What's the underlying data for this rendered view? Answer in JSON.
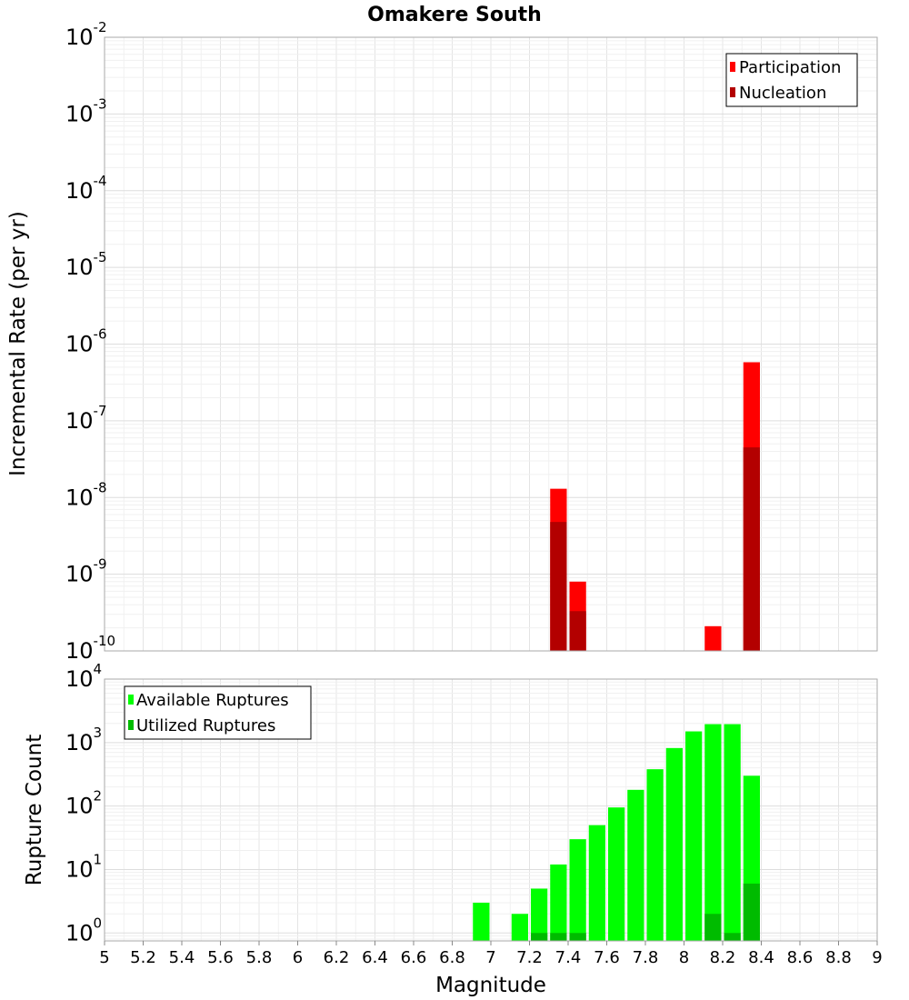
{
  "chart_data": [
    {
      "type": "bar",
      "title": "Omakere South",
      "ylabel": "Incremental Rate (per yr)",
      "yscale": "log",
      "ylim": [
        1e-10,
        0.01
      ],
      "xlim": [
        5,
        9
      ],
      "bar_width": 0.1,
      "grid": true,
      "legend_position": "top-right",
      "series": [
        {
          "name": "Participation",
          "color": "#ff0000",
          "x": [
            7.35,
            7.45,
            8.15,
            8.35
          ],
          "values": [
            1.3e-08,
            8e-10,
            2.1e-10,
            5.8e-07
          ]
        },
        {
          "name": "Nucleation",
          "color": "#b30000",
          "x": [
            7.35,
            7.45,
            8.35
          ],
          "values": [
            4.8e-09,
            3.3e-10,
            4.5e-08
          ]
        }
      ]
    },
    {
      "type": "bar",
      "ylabel": "Rupture Count",
      "xlabel": "Magnitude",
      "yscale": "log",
      "ylim": [
        0.75,
        10000
      ],
      "xlim": [
        5,
        9
      ],
      "bar_width": 0.1,
      "grid": true,
      "legend_position": "top-left",
      "x_ticks": [
        "5",
        "5.2",
        "5.4",
        "5.6",
        "5.8",
        "6",
        "6.2",
        "6.4",
        "6.6",
        "6.8",
        "7",
        "7.2",
        "7.4",
        "7.6",
        "7.8",
        "8",
        "8.2",
        "8.4",
        "8.6",
        "8.8",
        "9"
      ],
      "series": [
        {
          "name": "Available Ruptures",
          "color": "#00ff00",
          "x": [
            6.95,
            7.15,
            7.25,
            7.35,
            7.45,
            7.55,
            7.65,
            7.75,
            7.85,
            7.95,
            8.05,
            8.15,
            8.25,
            8.35
          ],
          "values": [
            3,
            2,
            5,
            12,
            30,
            50,
            95,
            180,
            380,
            820,
            1500,
            1950,
            1950,
            300
          ]
        },
        {
          "name": "Utilized Ruptures",
          "color": "#00bb00",
          "x": [
            7.25,
            7.35,
            7.45,
            8.15,
            8.25,
            8.35
          ],
          "values": [
            1,
            1,
            1,
            2,
            1,
            6
          ]
        }
      ]
    }
  ]
}
